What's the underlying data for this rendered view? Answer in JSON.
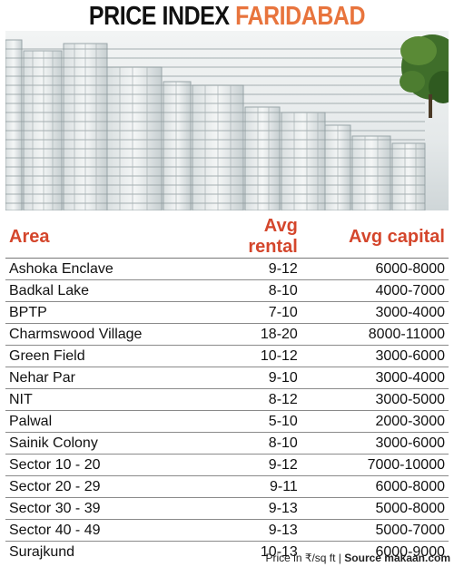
{
  "title": {
    "part1": "PRICE INDEX",
    "part2": "FARIDABAD"
  },
  "photo": {
    "icon": "apartment-buildings-photo"
  },
  "table": {
    "headers": {
      "area": "Area",
      "rental": "Avg rental",
      "capital": "Avg capital"
    },
    "rows": [
      {
        "area": "Ashoka Enclave",
        "rental": "9-12",
        "capital": "6000-8000"
      },
      {
        "area": "Badkal Lake",
        "rental": "8-10",
        "capital": "4000-7000"
      },
      {
        "area": "BPTP",
        "rental": "7-10",
        "capital": "3000-4000"
      },
      {
        "area": "Charmswood Village",
        "rental": "18-20",
        "capital": "8000-11000"
      },
      {
        "area": "Green Field",
        "rental": "10-12",
        "capital": "3000-6000"
      },
      {
        "area": "Nehar Par",
        "rental": "9-10",
        "capital": "3000-4000"
      },
      {
        "area": "NIT",
        "rental": "8-12",
        "capital": "3000-5000"
      },
      {
        "area": "Palwal",
        "rental": "5-10",
        "capital": "2000-3000"
      },
      {
        "area": "Sainik Colony",
        "rental": "8-10",
        "capital": "3000-6000"
      },
      {
        "area": "Sector 10 - 20",
        "rental": "9-12",
        "capital": "7000-10000"
      },
      {
        "area": "Sector 20 - 29",
        "rental": "9-11",
        "capital": "6000-8000"
      },
      {
        "area": "Sector 30 - 39",
        "rental": "9-13",
        "capital": "5000-8000"
      },
      {
        "area": "Sector 40 - 49",
        "rental": "9-13",
        "capital": "5000-7000"
      },
      {
        "area": "Surajkund",
        "rental": "10-13",
        "capital": "6000-9000"
      }
    ]
  },
  "footer": {
    "unit": "Price in ₹/sq ft |",
    "source": "Source makaan.com"
  },
  "colors": {
    "accent_orange": "#e8743d",
    "header_red": "#d4462c"
  }
}
